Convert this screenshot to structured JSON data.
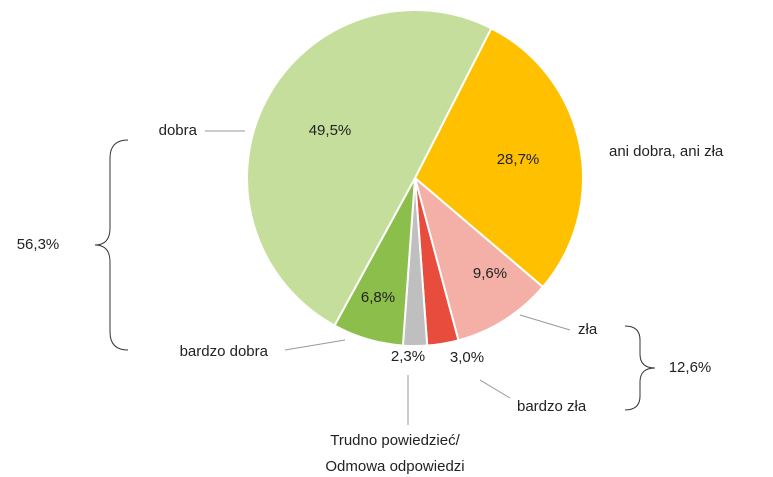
{
  "chart_data": {
    "type": "pie",
    "categories": [
      "ani dobra, ani zła",
      "zła",
      "bardzo zła",
      "Trudno powiedzieć/\nOdmowa odpowiedzi",
      "bardzo dobra",
      "dobra"
    ],
    "values": [
      28.7,
      9.6,
      3.0,
      2.3,
      6.8,
      49.5
    ],
    "value_labels": [
      "28,7%",
      "9,6%",
      "3,0%",
      "2,3%",
      "6,8%",
      "49,5%"
    ],
    "colors": [
      "#FFC000",
      "#F4B0A6",
      "#E84C3D",
      "#BFBFBF",
      "#8BBE4B",
      "#C5DE9C"
    ],
    "annotations": [
      {
        "text": "56,3%"
      },
      {
        "text": "12,6%"
      }
    ]
  }
}
